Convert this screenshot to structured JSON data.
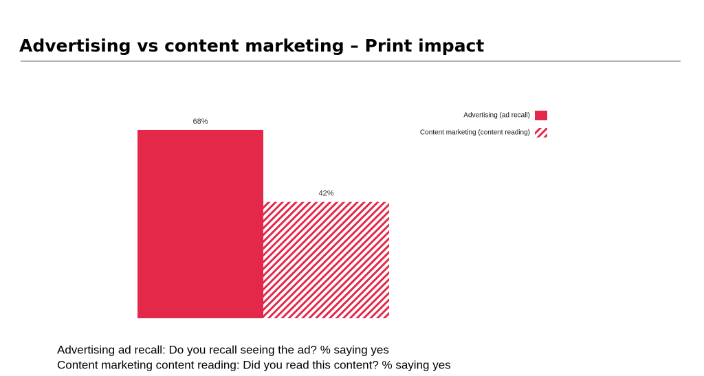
{
  "chart_data": {
    "type": "bar",
    "title": "Advertising vs content marketing – Print impact",
    "categories": [
      null
    ],
    "series": [
      {
        "name": "Advertising (ad recall)",
        "color": "#e3284a",
        "fill": "solid",
        "values": [
          68
        ],
        "value_labels": [
          "68%"
        ]
      },
      {
        "name": "Content marketing (content reading)",
        "color": "#e3284a",
        "fill": "hatch",
        "values": [
          42
        ],
        "value_labels": [
          "42%"
        ]
      }
    ],
    "ylim": [
      0,
      100
    ],
    "notes": [
      "Advertising ad recall: Do you recall seeing the ad? % saying yes",
      "Content marketing content reading: Did you read this content? % saying yes"
    ]
  }
}
